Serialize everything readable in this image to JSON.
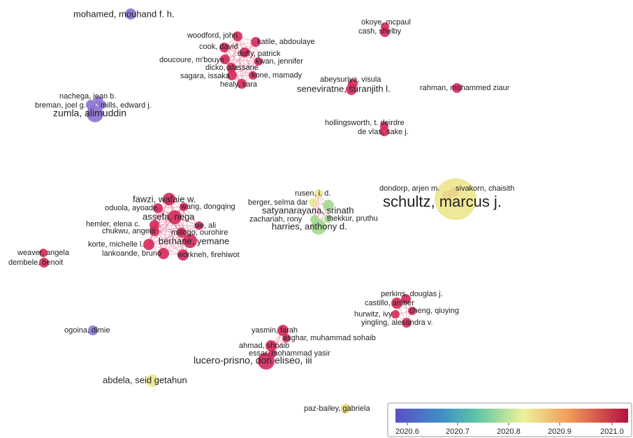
{
  "nodes": [
    {
      "label": "mohamed, mouhand f. h."
    },
    {
      "label": "woodford, john"
    },
    {
      "label": "katile, abdoulaye"
    },
    {
      "label": "cook, david"
    },
    {
      "label": "duffy, patrick"
    },
    {
      "label": "doucoure, m'bouye"
    },
    {
      "label": "kwan, jennifer"
    },
    {
      "label": "dicko, alassane"
    },
    {
      "label": "sagara, issaka"
    },
    {
      "label": "kone, mamady"
    },
    {
      "label": "healy, sara"
    },
    {
      "label": "okoye, mcpaul"
    },
    {
      "label": "cash, shelby"
    },
    {
      "label": "abeysuriya, visula"
    },
    {
      "label": "seneviratne, suranjith l."
    },
    {
      "label": "rahman, mohammed ziaur"
    },
    {
      "label": "nachega, jean b."
    },
    {
      "label": "breman, joel g."
    },
    {
      "label": "mills, edward j."
    },
    {
      "label": "zumla, alimuddin"
    },
    {
      "label": "hollingsworth, t. deirdre"
    },
    {
      "label": "de vlas, sake j."
    },
    {
      "label": "rusen, i. d."
    },
    {
      "label": "dondorp, arjen m."
    },
    {
      "label": "sivakorn, chaisith"
    },
    {
      "label": "schultz, marcus j."
    },
    {
      "label": "berger, selma dar"
    },
    {
      "label": "satyanarayana, srinath"
    },
    {
      "label": "zachariah, rony"
    },
    {
      "label": "thekkur, pruthu"
    },
    {
      "label": "harries, anthony d."
    },
    {
      "label": "fawzi, wafaie w."
    },
    {
      "label": "oduola, ayoade"
    },
    {
      "label": "wang, dongqing"
    },
    {
      "label": "assefa, nega"
    },
    {
      "label": "hemler, elena c."
    },
    {
      "label": "sie, ali"
    },
    {
      "label": "chukwu, angela"
    },
    {
      "label": "millogo, ourohire"
    },
    {
      "label": "berhane, yemane"
    },
    {
      "label": "korte, michelle l."
    },
    {
      "label": "lankoande, bruno"
    },
    {
      "label": "workneh, firehiwot"
    },
    {
      "label": "weaver, angela"
    },
    {
      "label": "dembele, benoit"
    },
    {
      "label": "perkins, douglas j."
    },
    {
      "label": "castillo, amber"
    },
    {
      "label": "cheng, qiuying"
    },
    {
      "label": "hurwitz, ivy"
    },
    {
      "label": "yingling, alexandra v."
    },
    {
      "label": "ogoina, dimie"
    },
    {
      "label": "yasmin, farah"
    },
    {
      "label": "asghar, muhammad sohaib"
    },
    {
      "label": "ahmad, shoaib"
    },
    {
      "label": "essar, mohammad yasir"
    },
    {
      "label": "lucero-prisno, don eliseo, iii"
    },
    {
      "label": "abdela, seid getahun"
    },
    {
      "label": "paz-bailey, gabriela"
    }
  ],
  "colorbar": {
    "ticks": [
      "2020.6",
      "2020.7",
      "2020.8",
      "2020.9",
      "2021.0"
    ]
  }
}
